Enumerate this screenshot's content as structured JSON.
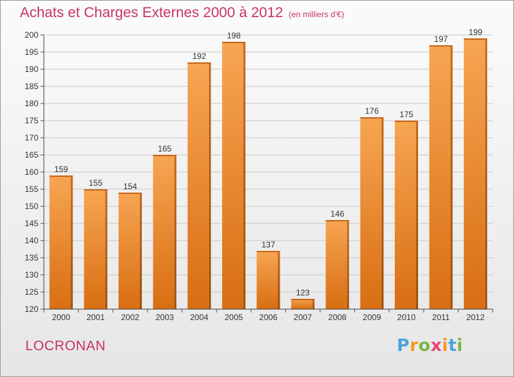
{
  "chart_data": {
    "type": "bar",
    "title": "Achats et Charges Externes 2000 à 2012",
    "subtitle": "(en milliers d'€)",
    "categories": [
      "2000",
      "2001",
      "2002",
      "2003",
      "2004",
      "2005",
      "2006",
      "2007",
      "2008",
      "2009",
      "2010",
      "2011",
      "2012"
    ],
    "values": [
      159,
      155,
      154,
      165,
      192,
      198,
      137,
      123,
      146,
      176,
      175,
      197,
      199
    ],
    "ylim": [
      120,
      200
    ],
    "yticks": [
      120,
      125,
      130,
      135,
      140,
      145,
      150,
      155,
      160,
      165,
      170,
      175,
      180,
      185,
      190,
      195,
      200
    ],
    "grid": true,
    "bar_color": "#f07f22",
    "title_color": "#c8336a"
  },
  "location": "LOCRONAN",
  "logo": {
    "text": "Proxiti",
    "letters": [
      {
        "ch": "P",
        "color": "#4aa3df"
      },
      {
        "ch": "r",
        "color": "#f39a1e"
      },
      {
        "ch": "o",
        "color": "#7ab648"
      },
      {
        "ch": "x",
        "color": "#e8467c"
      },
      {
        "ch": "i",
        "color": "#f39a1e"
      },
      {
        "ch": "t",
        "color": "#4aa3df"
      },
      {
        "ch": "i",
        "color": "#7ab648"
      }
    ]
  }
}
